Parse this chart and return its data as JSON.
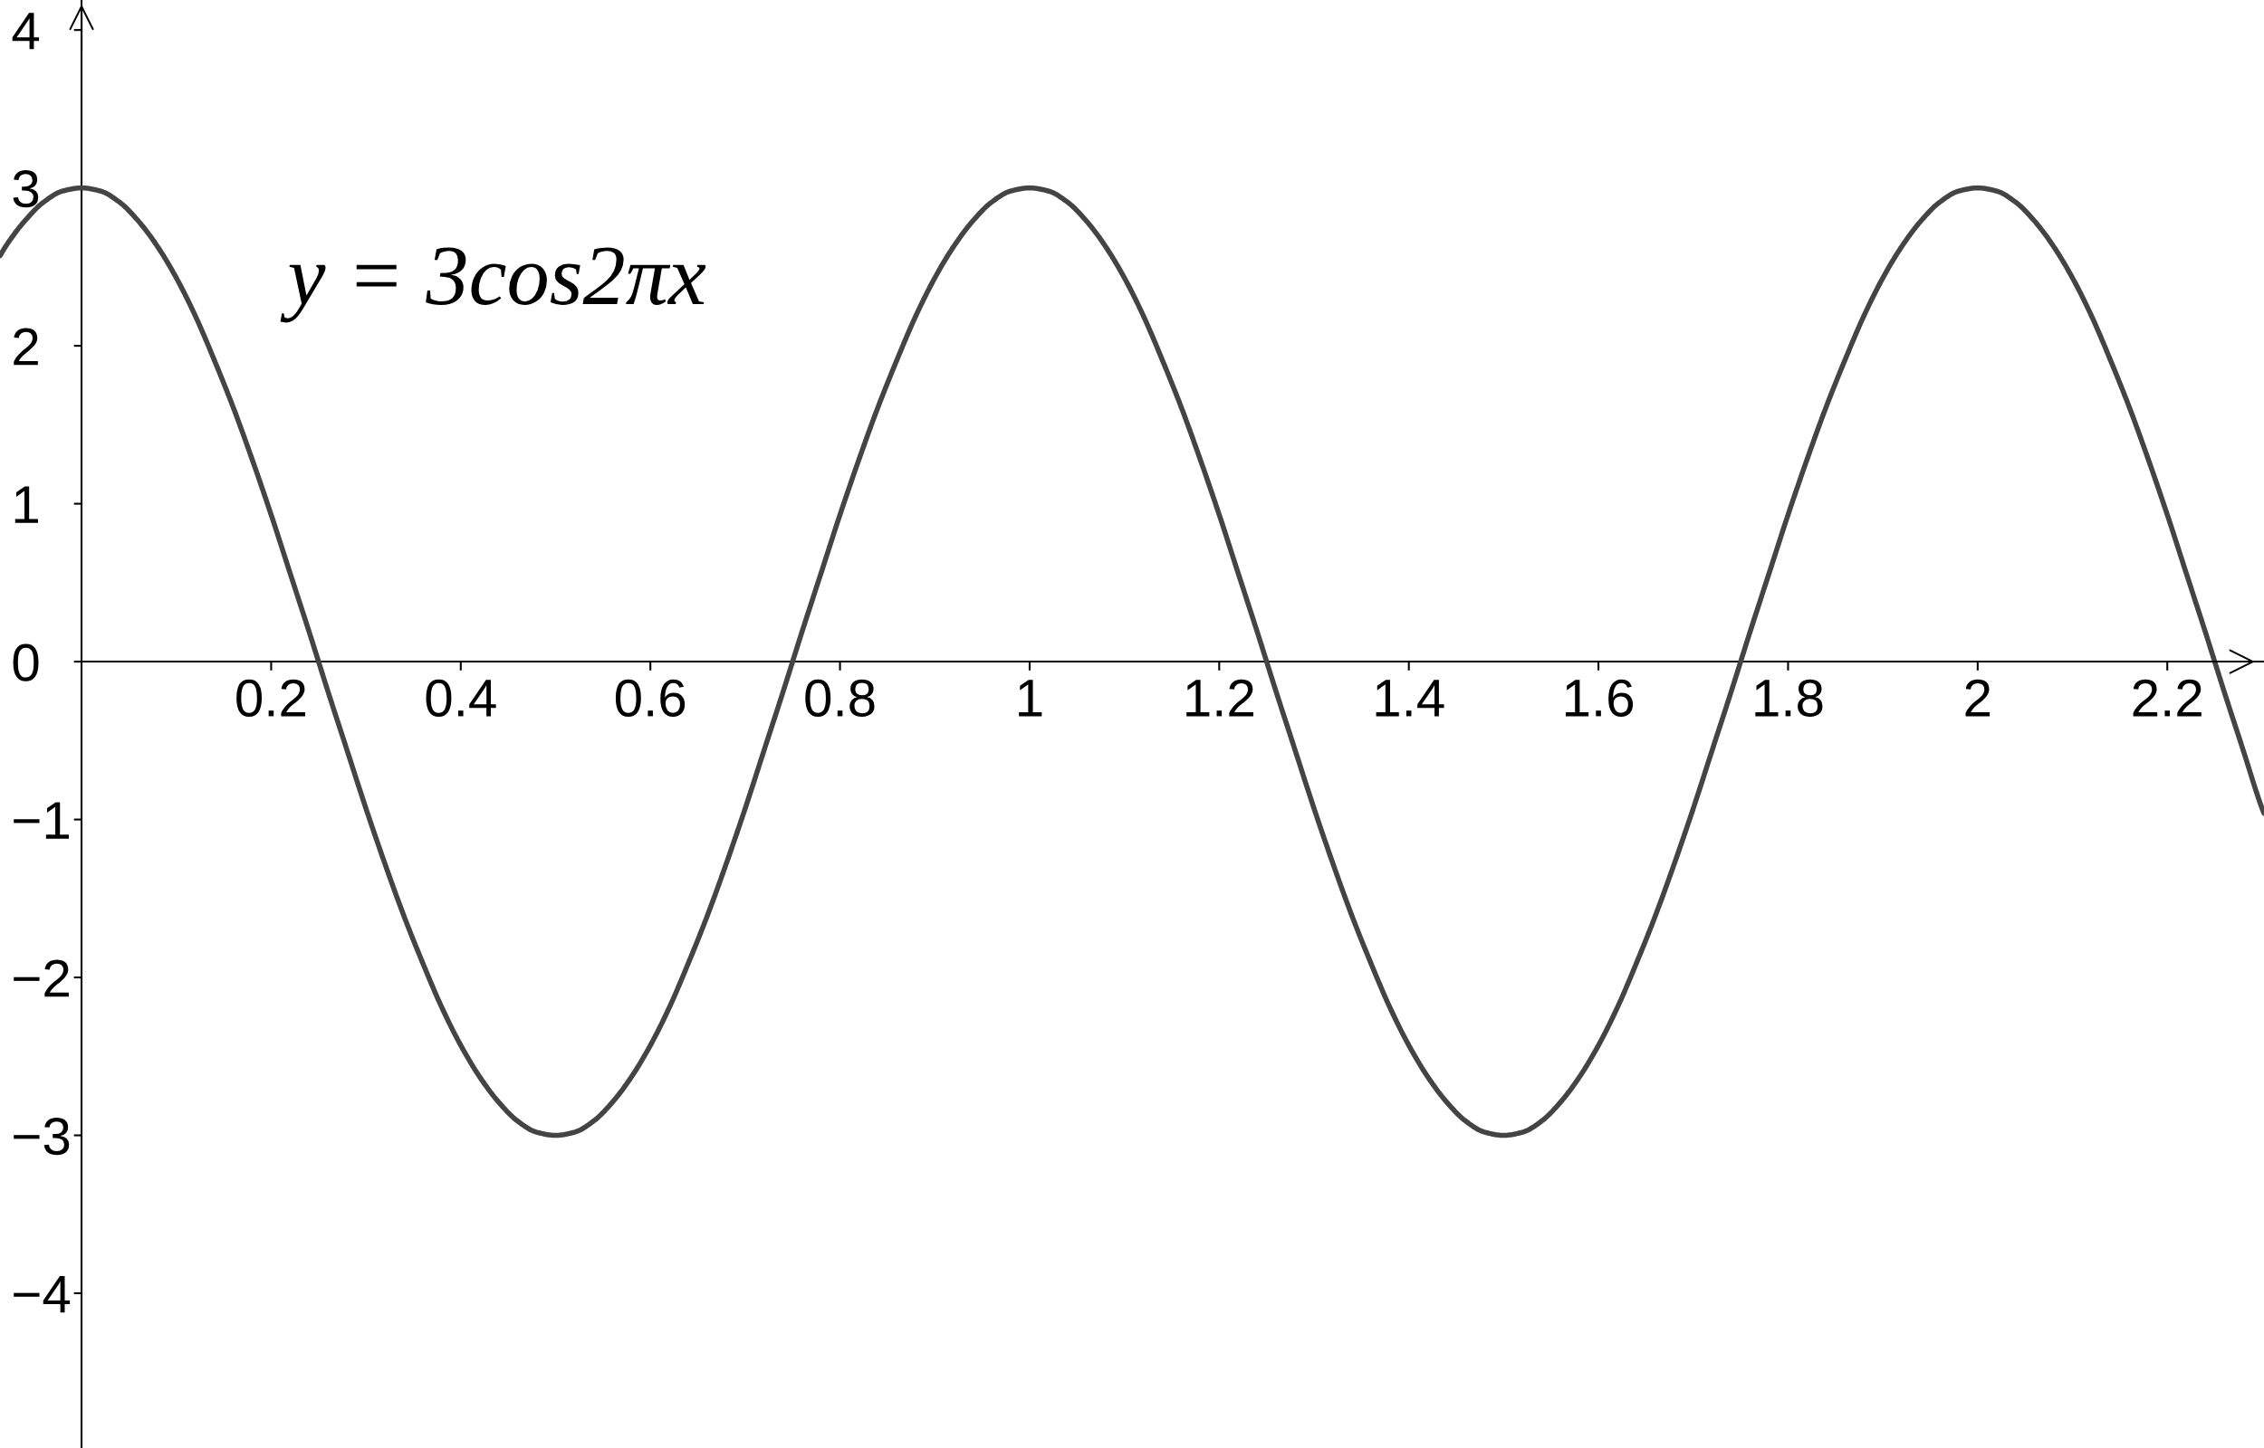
{
  "chart_data": {
    "type": "line",
    "x": [
      -0.086,
      -0.08,
      -0.06,
      -0.04,
      -0.02,
      0,
      0.02,
      0.04,
      0.06,
      0.08,
      0.1,
      0.12,
      0.14,
      0.16,
      0.18,
      0.2,
      0.22,
      0.24,
      0.26,
      0.28,
      0.3,
      0.32,
      0.34,
      0.36,
      0.38,
      0.4,
      0.42,
      0.44,
      0.46,
      0.48,
      0.5,
      0.52,
      0.54,
      0.56,
      0.58,
      0.6,
      0.62,
      0.64,
      0.66,
      0.68,
      0.7,
      0.72,
      0.74,
      0.76,
      0.78,
      0.8,
      0.82,
      0.84,
      0.86,
      0.88,
      0.9,
      0.92,
      0.94,
      0.96,
      0.98,
      1,
      1.02,
      1.04,
      1.06,
      1.08,
      1.1,
      1.12,
      1.14,
      1.16,
      1.18,
      1.2,
      1.22,
      1.24,
      1.26,
      1.28,
      1.3,
      1.32,
      1.34,
      1.36,
      1.38,
      1.4,
      1.42,
      1.44,
      1.46,
      1.48,
      1.5,
      1.52,
      1.54,
      1.56,
      1.58,
      1.6,
      1.62,
      1.64,
      1.66,
      1.68,
      1.7,
      1.72,
      1.74,
      1.76,
      1.78,
      1.8,
      1.82,
      1.84,
      1.86,
      1.88,
      1.9,
      1.92,
      1.94,
      1.96,
      1.98,
      2,
      2.02,
      2.04,
      2.06,
      2.08,
      2.1,
      2.12,
      2.14,
      2.16,
      2.18,
      2.2,
      2.22,
      2.24,
      2.26,
      2.28,
      2.3,
      2.302
    ],
    "series": [
      {
        "color": "#444444",
        "values": [
          2.57,
          2.63,
          2.79,
          2.91,
          2.98,
          3.0,
          2.98,
          2.91,
          2.79,
          2.63,
          2.43,
          2.19,
          1.91,
          1.61,
          1.28,
          0.93,
          0.56,
          0.19,
          -0.19,
          -0.56,
          -0.93,
          -1.28,
          -1.61,
          -1.91,
          -2.19,
          -2.43,
          -2.63,
          -2.79,
          -2.91,
          -2.98,
          -3.0,
          -2.98,
          -2.91,
          -2.79,
          -2.63,
          -2.43,
          -2.19,
          -1.91,
          -1.61,
          -1.28,
          -0.93,
          -0.56,
          -0.19,
          0.19,
          0.56,
          0.93,
          1.28,
          1.61,
          1.91,
          2.19,
          2.43,
          2.63,
          2.79,
          2.91,
          2.98,
          3.0,
          2.98,
          2.91,
          2.79,
          2.63,
          2.43,
          2.19,
          1.91,
          1.61,
          1.28,
          0.93,
          0.56,
          0.19,
          -0.19,
          -0.56,
          -0.93,
          -1.28,
          -1.61,
          -1.91,
          -2.19,
          -2.43,
          -2.63,
          -2.79,
          -2.91,
          -2.98,
          -3.0,
          -2.98,
          -2.91,
          -2.79,
          -2.63,
          -2.43,
          -2.19,
          -1.91,
          -1.61,
          -1.28,
          -0.93,
          -0.56,
          -0.19,
          0.19,
          0.56,
          0.93,
          1.28,
          1.61,
          1.91,
          2.19,
          2.43,
          2.63,
          2.79,
          2.91,
          2.98,
          3.0,
          2.98,
          2.91,
          2.79,
          2.63,
          2.43,
          2.19,
          1.91,
          1.61,
          1.28,
          0.93,
          0.56,
          0.19,
          -0.19,
          -0.56,
          -0.93,
          -0.96
        ]
      }
    ],
    "xlim": [
      -0.086,
      2.302
    ],
    "ylim": [
      -4.98,
      4.19
    ],
    "xticks": [
      0.2,
      0.4,
      0.6,
      0.8,
      1,
      1.2,
      1.4,
      1.6,
      1.8,
      2,
      2.2
    ],
    "yticks": [
      -4,
      -3,
      -2,
      -1,
      0,
      1,
      2,
      3,
      4
    ],
    "grid": false,
    "line_style": "solid",
    "annotations": [
      "y = 3cos2πx"
    ]
  }
}
